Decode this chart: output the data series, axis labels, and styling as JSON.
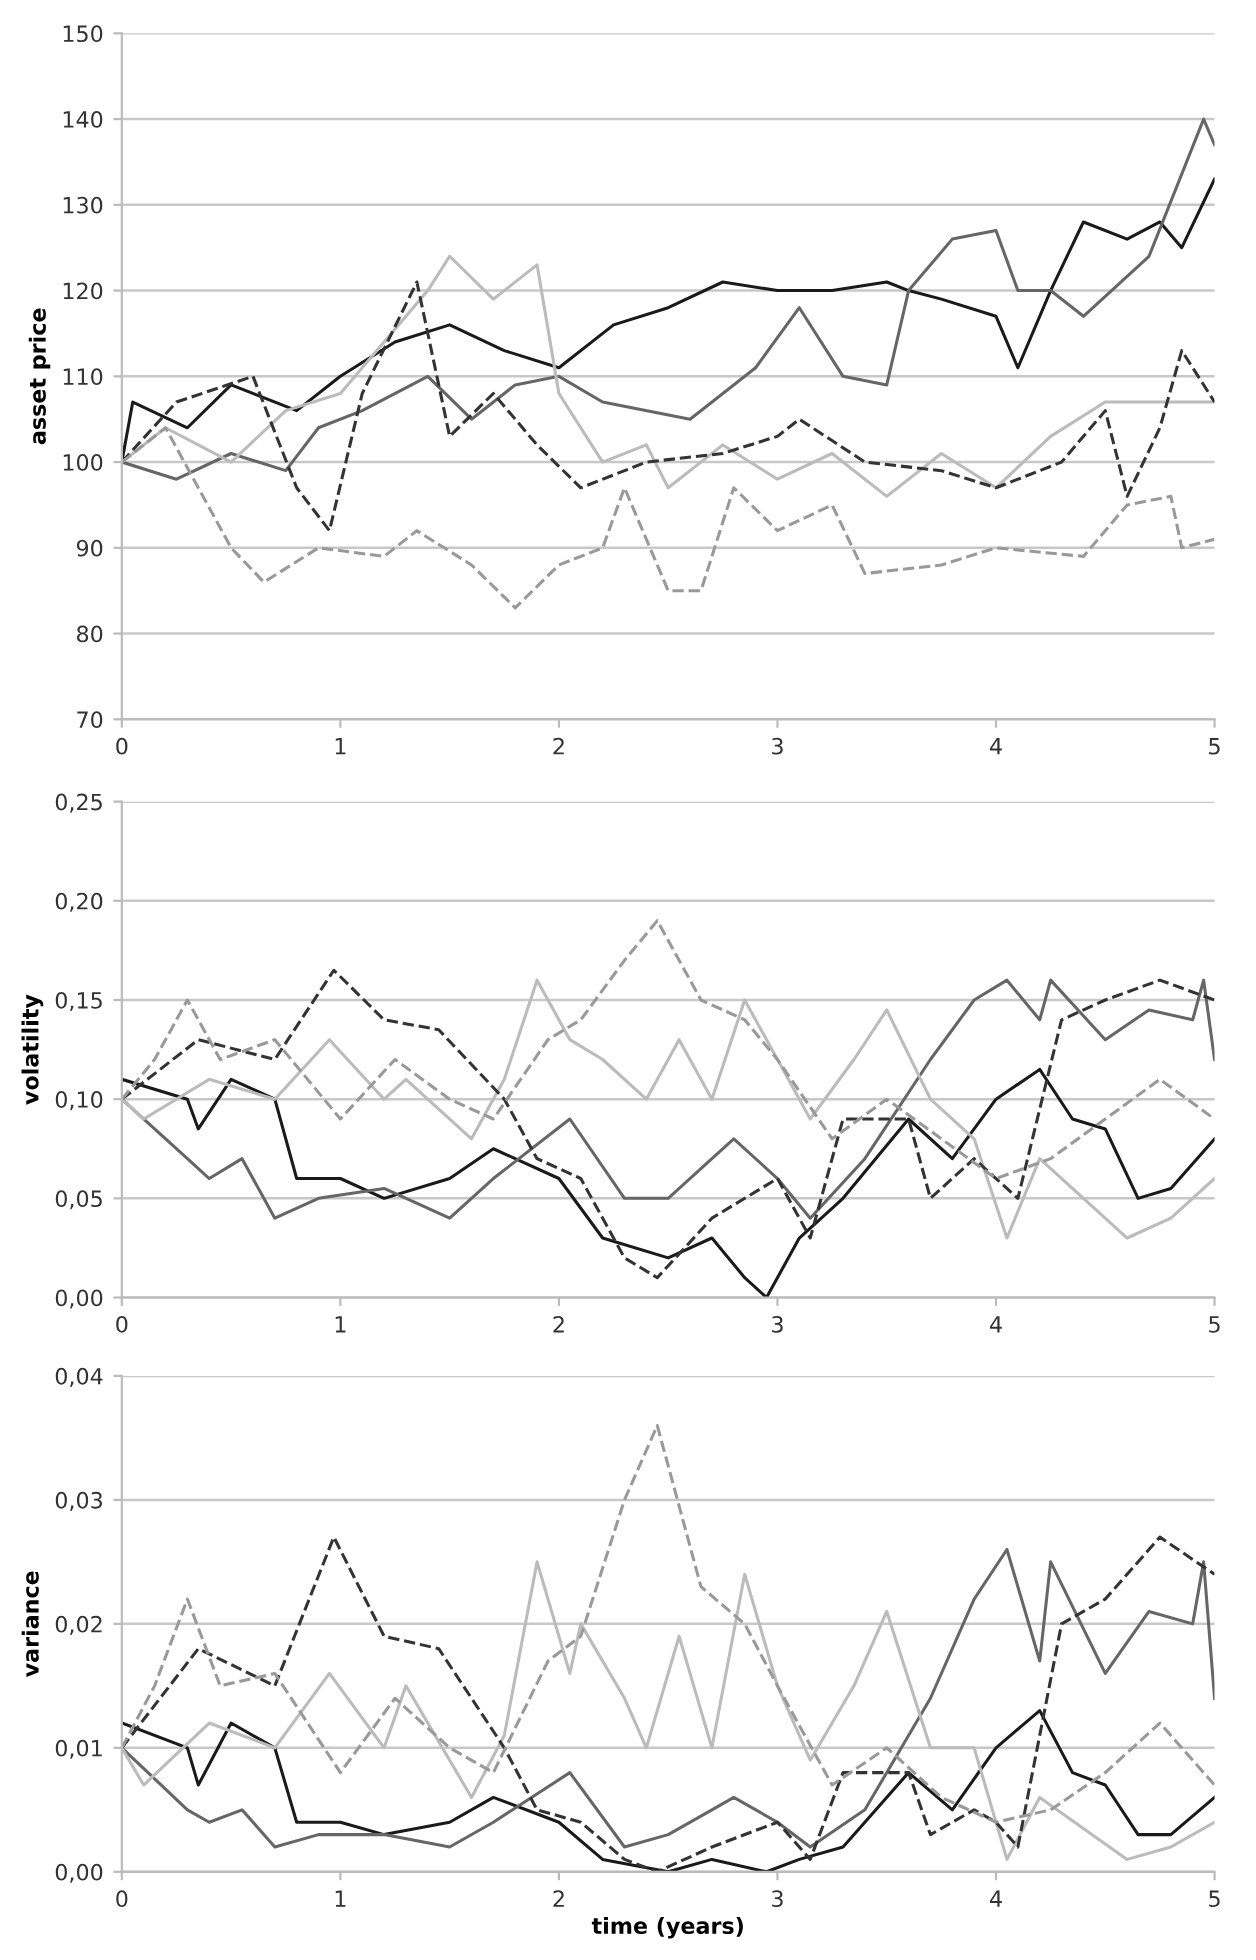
{
  "chart_data": [
    {
      "type": "line",
      "ylabel": "asset price",
      "xlim": [
        0,
        5
      ],
      "xticks": [
        0,
        1,
        2,
        3,
        4,
        5
      ],
      "ylim": [
        70,
        150
      ],
      "yticks": [
        70,
        80,
        90,
        100,
        110,
        120,
        130,
        140,
        150
      ],
      "grid": "y",
      "series": [
        {
          "color": "#1a1a1a",
          "line_style": "solid",
          "x": [
            0,
            0.05,
            0.3,
            0.5,
            0.8,
            1.0,
            1.25,
            1.5,
            1.75,
            2.0,
            2.25,
            2.5,
            2.75,
            3.0,
            3.25,
            3.5,
            3.6,
            3.75,
            4.0,
            4.1,
            4.25,
            4.4,
            4.6,
            4.75,
            4.85,
            5.0
          ],
          "values": [
            100,
            107,
            104,
            109,
            106,
            110,
            114,
            116,
            113,
            111,
            116,
            118,
            121,
            120,
            120,
            121,
            120,
            119,
            117,
            111,
            120,
            128,
            126,
            128,
            125,
            133
          ]
        },
        {
          "color": "#666666",
          "line_style": "solid",
          "x": [
            0,
            0.25,
            0.5,
            0.75,
            0.9,
            1.1,
            1.4,
            1.6,
            1.8,
            2.0,
            2.2,
            2.6,
            2.9,
            3.1,
            3.3,
            3.5,
            3.6,
            3.8,
            4.0,
            4.1,
            4.25,
            4.4,
            4.7,
            4.95,
            5.0
          ],
          "values": [
            100,
            98,
            101,
            99,
            104,
            106,
            110,
            105,
            109,
            110,
            107,
            105,
            111,
            118,
            110,
            109,
            120,
            126,
            127,
            120,
            120,
            117,
            124,
            140,
            137
          ]
        },
        {
          "color": "#bbbbbb",
          "line_style": "solid",
          "x": [
            0,
            0.2,
            0.5,
            0.75,
            1.0,
            1.4,
            1.5,
            1.7,
            1.9,
            2.0,
            2.2,
            2.4,
            2.5,
            2.75,
            3.0,
            3.25,
            3.5,
            3.75,
            4.0,
            4.25,
            4.5,
            5.0
          ],
          "values": [
            100,
            104,
            100,
            106,
            108,
            120,
            124,
            119,
            123,
            108,
            100,
            102,
            97,
            102,
            98,
            101,
            96,
            101,
            97,
            103,
            107,
            107
          ]
        },
        {
          "color": "#333333",
          "line_style": "dashed",
          "x": [
            0,
            0.25,
            0.6,
            0.8,
            0.95,
            1.1,
            1.35,
            1.5,
            1.7,
            1.9,
            2.1,
            2.4,
            2.75,
            3.0,
            3.1,
            3.4,
            3.75,
            4.0,
            4.3,
            4.5,
            4.6,
            4.75,
            4.85,
            5.0
          ],
          "values": [
            100,
            107,
            110,
            97,
            92,
            108,
            121,
            103,
            108,
            102,
            97,
            100,
            101,
            103,
            105,
            100,
            99,
            97,
            100,
            106,
            96,
            104,
            113,
            107
          ]
        },
        {
          "color": "#999999",
          "line_style": "dashed",
          "x": [
            0,
            0.2,
            0.5,
            0.65,
            0.9,
            1.2,
            1.35,
            1.6,
            1.8,
            2.0,
            2.2,
            2.3,
            2.5,
            2.65,
            2.8,
            3.0,
            3.25,
            3.4,
            3.75,
            4.0,
            4.4,
            4.6,
            4.8,
            4.85,
            5.0
          ],
          "values": [
            100,
            104,
            90,
            86,
            90,
            89,
            92,
            88,
            83,
            88,
            90,
            97,
            85,
            85,
            97,
            92,
            95,
            87,
            88,
            90,
            89,
            95,
            96,
            90,
            91
          ]
        }
      ]
    },
    {
      "type": "line",
      "ylabel": "volatility",
      "xlim": [
        0,
        5
      ],
      "xticks": [
        0,
        1,
        2,
        3,
        4,
        5
      ],
      "ylim": [
        0,
        0.25
      ],
      "yticks": [
        {
          "value": 0,
          "label": "0,00"
        },
        {
          "value": 0.05,
          "label": "0,05"
        },
        {
          "value": 0.1,
          "label": "0,10"
        },
        {
          "value": 0.15,
          "label": "0,15"
        },
        {
          "value": 0.2,
          "label": "0,20"
        },
        {
          "value": 0.25,
          "label": "0,25"
        }
      ],
      "grid": "y",
      "series": [
        {
          "color": "#1a1a1a",
          "line_style": "solid",
          "x": [
            0,
            0.3,
            0.35,
            0.5,
            0.7,
            0.8,
            1.0,
            1.2,
            1.5,
            1.7,
            2.0,
            2.2,
            2.5,
            2.7,
            2.85,
            2.95,
            3.1,
            3.3,
            3.6,
            3.8,
            4.0,
            4.2,
            4.35,
            4.5,
            4.65,
            4.8,
            5.0
          ],
          "values": [
            0.11,
            0.1,
            0.085,
            0.11,
            0.1,
            0.06,
            0.06,
            0.05,
            0.06,
            0.075,
            0.06,
            0.03,
            0.02,
            0.03,
            0.01,
            0.0,
            0.03,
            0.05,
            0.09,
            0.07,
            0.1,
            0.115,
            0.09,
            0.085,
            0.05,
            0.055,
            0.08
          ]
        },
        {
          "color": "#666666",
          "line_style": "solid",
          "x": [
            0,
            0.3,
            0.4,
            0.55,
            0.7,
            0.9,
            1.2,
            1.5,
            1.7,
            2.05,
            2.3,
            2.5,
            2.7,
            2.8,
            3.0,
            3.15,
            3.4,
            3.7,
            3.9,
            4.05,
            4.2,
            4.25,
            4.5,
            4.7,
            4.9,
            4.95,
            5.0
          ],
          "values": [
            0.1,
            0.07,
            0.06,
            0.07,
            0.04,
            0.05,
            0.055,
            0.04,
            0.06,
            0.09,
            0.05,
            0.05,
            0.07,
            0.08,
            0.06,
            0.04,
            0.07,
            0.12,
            0.15,
            0.16,
            0.14,
            0.16,
            0.13,
            0.145,
            0.14,
            0.16,
            0.12
          ]
        },
        {
          "color": "#bbbbbb",
          "line_style": "solid",
          "x": [
            0,
            0.1,
            0.4,
            0.7,
            0.95,
            1.2,
            1.3,
            1.6,
            1.75,
            1.9,
            2.05,
            2.2,
            2.4,
            2.55,
            2.7,
            2.85,
            3.0,
            3.15,
            3.35,
            3.5,
            3.7,
            3.9,
            4.05,
            4.2,
            4.6,
            4.8,
            5.0
          ],
          "values": [
            0.1,
            0.09,
            0.11,
            0.1,
            0.13,
            0.1,
            0.11,
            0.08,
            0.11,
            0.16,
            0.13,
            0.12,
            0.1,
            0.13,
            0.1,
            0.15,
            0.12,
            0.09,
            0.12,
            0.145,
            0.1,
            0.08,
            0.03,
            0.07,
            0.03,
            0.04,
            0.06
          ]
        },
        {
          "color": "#333333",
          "line_style": "dashed",
          "x": [
            0,
            0.35,
            0.7,
            0.97,
            1.2,
            1.45,
            1.75,
            1.9,
            2.1,
            2.3,
            2.45,
            2.7,
            3.0,
            3.15,
            3.3,
            3.6,
            3.7,
            3.9,
            4.0,
            4.1,
            4.3,
            4.5,
            4.75,
            5.0
          ],
          "values": [
            0.1,
            0.13,
            0.12,
            0.165,
            0.14,
            0.135,
            0.1,
            0.07,
            0.06,
            0.02,
            0.01,
            0.04,
            0.06,
            0.03,
            0.09,
            0.09,
            0.05,
            0.07,
            0.06,
            0.05,
            0.14,
            0.15,
            0.16,
            0.15
          ]
        },
        {
          "color": "#999999",
          "line_style": "dashed",
          "x": [
            0,
            0.15,
            0.3,
            0.45,
            0.7,
            1.0,
            1.25,
            1.5,
            1.7,
            1.95,
            2.1,
            2.3,
            2.45,
            2.65,
            2.85,
            3.0,
            3.25,
            3.5,
            3.75,
            4.0,
            4.25,
            4.5,
            4.75,
            5.0
          ],
          "values": [
            0.1,
            0.12,
            0.15,
            0.12,
            0.13,
            0.09,
            0.12,
            0.1,
            0.09,
            0.13,
            0.14,
            0.17,
            0.19,
            0.15,
            0.14,
            0.12,
            0.08,
            0.1,
            0.08,
            0.06,
            0.07,
            0.09,
            0.11,
            0.09
          ]
        }
      ]
    },
    {
      "type": "line",
      "ylabel": "variance",
      "xlabel": "time (years)",
      "xlim": [
        0,
        5
      ],
      "xticks": [
        0,
        1,
        2,
        3,
        4,
        5
      ],
      "ylim": [
        0,
        0.04
      ],
      "yticks": [
        {
          "value": 0,
          "label": "0,00"
        },
        {
          "value": 0.01,
          "label": "0,01"
        },
        {
          "value": 0.02,
          "label": "0,02"
        },
        {
          "value": 0.03,
          "label": "0,03"
        },
        {
          "value": 0.04,
          "label": "0,04"
        }
      ],
      "grid": "y",
      "series": [
        {
          "color": "#1a1a1a",
          "line_style": "solid",
          "x": [
            0,
            0.3,
            0.35,
            0.5,
            0.7,
            0.8,
            1.0,
            1.2,
            1.5,
            1.7,
            2.0,
            2.2,
            2.5,
            2.7,
            2.95,
            3.1,
            3.3,
            3.6,
            3.8,
            4.0,
            4.2,
            4.35,
            4.5,
            4.65,
            4.8,
            5.0
          ],
          "values": [
            0.012,
            0.01,
            0.007,
            0.012,
            0.01,
            0.004,
            0.004,
            0.003,
            0.004,
            0.006,
            0.004,
            0.001,
            0.0,
            0.001,
            0.0,
            0.001,
            0.002,
            0.008,
            0.005,
            0.01,
            0.013,
            0.008,
            0.007,
            0.003,
            0.003,
            0.006
          ]
        },
        {
          "color": "#666666",
          "line_style": "solid",
          "x": [
            0,
            0.3,
            0.4,
            0.55,
            0.7,
            0.9,
            1.2,
            1.5,
            1.7,
            2.05,
            2.3,
            2.5,
            2.7,
            2.8,
            3.0,
            3.15,
            3.4,
            3.7,
            3.9,
            4.05,
            4.2,
            4.25,
            4.5,
            4.7,
            4.9,
            4.95,
            5.0
          ],
          "values": [
            0.01,
            0.005,
            0.004,
            0.005,
            0.002,
            0.003,
            0.003,
            0.002,
            0.004,
            0.008,
            0.002,
            0.003,
            0.005,
            0.006,
            0.004,
            0.002,
            0.005,
            0.014,
            0.022,
            0.026,
            0.017,
            0.025,
            0.016,
            0.021,
            0.02,
            0.025,
            0.014
          ]
        },
        {
          "color": "#bbbbbb",
          "line_style": "solid",
          "x": [
            0,
            0.1,
            0.4,
            0.7,
            0.95,
            1.2,
            1.3,
            1.6,
            1.75,
            1.9,
            2.05,
            2.1,
            2.3,
            2.4,
            2.55,
            2.7,
            2.85,
            3.0,
            3.15,
            3.35,
            3.5,
            3.7,
            3.9,
            4.05,
            4.2,
            4.6,
            4.8,
            5.0
          ],
          "values": [
            0.01,
            0.007,
            0.012,
            0.01,
            0.016,
            0.01,
            0.015,
            0.006,
            0.011,
            0.025,
            0.016,
            0.02,
            0.014,
            0.01,
            0.019,
            0.01,
            0.024,
            0.015,
            0.009,
            0.015,
            0.021,
            0.01,
            0.01,
            0.001,
            0.006,
            0.001,
            0.002,
            0.004
          ]
        },
        {
          "color": "#333333",
          "line_style": "dashed",
          "x": [
            0,
            0.35,
            0.7,
            0.97,
            1.2,
            1.45,
            1.75,
            1.9,
            2.1,
            2.3,
            2.45,
            2.7,
            3.0,
            3.15,
            3.3,
            3.6,
            3.7,
            3.9,
            4.0,
            4.1,
            4.3,
            4.5,
            4.75,
            5.0
          ],
          "values": [
            0.01,
            0.018,
            0.015,
            0.027,
            0.019,
            0.018,
            0.01,
            0.005,
            0.004,
            0.001,
            0.0,
            0.002,
            0.004,
            0.001,
            0.008,
            0.008,
            0.003,
            0.005,
            0.004,
            0.002,
            0.02,
            0.022,
            0.027,
            0.024
          ]
        },
        {
          "color": "#999999",
          "line_style": "dashed",
          "x": [
            0,
            0.15,
            0.3,
            0.45,
            0.7,
            1.0,
            1.25,
            1.5,
            1.7,
            1.95,
            2.1,
            2.3,
            2.45,
            2.65,
            2.85,
            3.0,
            3.25,
            3.5,
            3.75,
            4.0,
            4.25,
            4.5,
            4.75,
            5.0
          ],
          "values": [
            0.01,
            0.015,
            0.022,
            0.015,
            0.016,
            0.008,
            0.014,
            0.01,
            0.008,
            0.017,
            0.019,
            0.03,
            0.036,
            0.023,
            0.02,
            0.015,
            0.007,
            0.01,
            0.006,
            0.004,
            0.005,
            0.008,
            0.012,
            0.007
          ]
        }
      ]
    }
  ]
}
